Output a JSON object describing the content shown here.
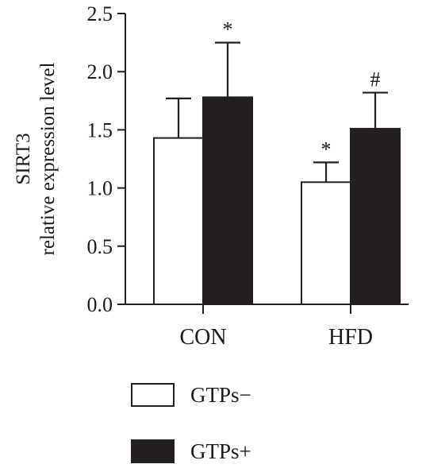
{
  "chart_data": {
    "type": "bar",
    "categories": [
      "CON",
      "HFD"
    ],
    "series": [
      {
        "name": "GTPs−",
        "fill": "#ffffff",
        "values": [
          1.43,
          1.05
        ],
        "errors": [
          0.34,
          0.17
        ],
        "annotations": [
          "",
          "*"
        ]
      },
      {
        "name": "GTPs+",
        "fill": "#231f20",
        "values": [
          1.78,
          1.51
        ],
        "errors": [
          0.47,
          0.31
        ],
        "annotations": [
          "*",
          "#"
        ]
      }
    ],
    "ylabel_line1": "SIRT3",
    "ylabel_line2": "relative expression level",
    "ylim": [
      0,
      2.5
    ],
    "yticks": [
      "0.0",
      "0.5",
      "1.0",
      "1.5",
      "2.0",
      "2.5"
    ],
    "grid": false,
    "legend_position": "bottom-left"
  }
}
